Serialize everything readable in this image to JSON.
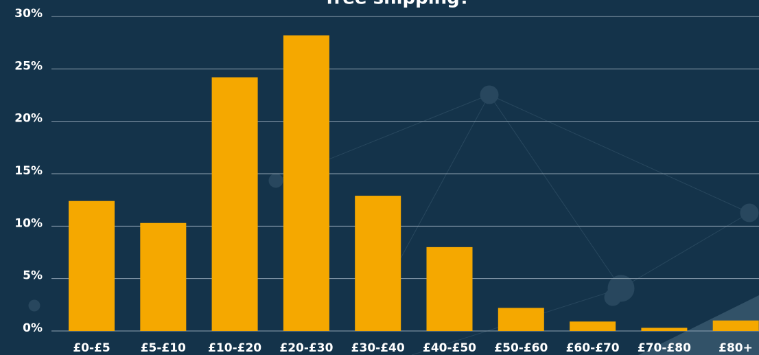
{
  "chart_data": {
    "type": "bar",
    "title": "free shipping?",
    "categories": [
      "£0-£5",
      "£5-£10",
      "£10-£20",
      "£20-£30",
      "£30-£40",
      "£40-£50",
      "£50-£60",
      "£60-£70",
      "£70-£80",
      "£80+"
    ],
    "values": [
      12.4,
      10.3,
      24.2,
      28.2,
      12.9,
      8.0,
      2.2,
      0.9,
      0.3,
      1.0
    ],
    "color": "#f5a800",
    "ylim": [
      0,
      30
    ],
    "yticks": [
      {
        "value": 0,
        "label": "0%"
      },
      {
        "value": 5,
        "label": "5%"
      },
      {
        "value": 10,
        "label": "10%"
      },
      {
        "value": 15,
        "label": "15%"
      },
      {
        "value": 20,
        "label": "20%"
      },
      {
        "value": 25,
        "label": "25%"
      },
      {
        "value": 30,
        "label": "30%"
      }
    ],
    "grid": true
  }
}
